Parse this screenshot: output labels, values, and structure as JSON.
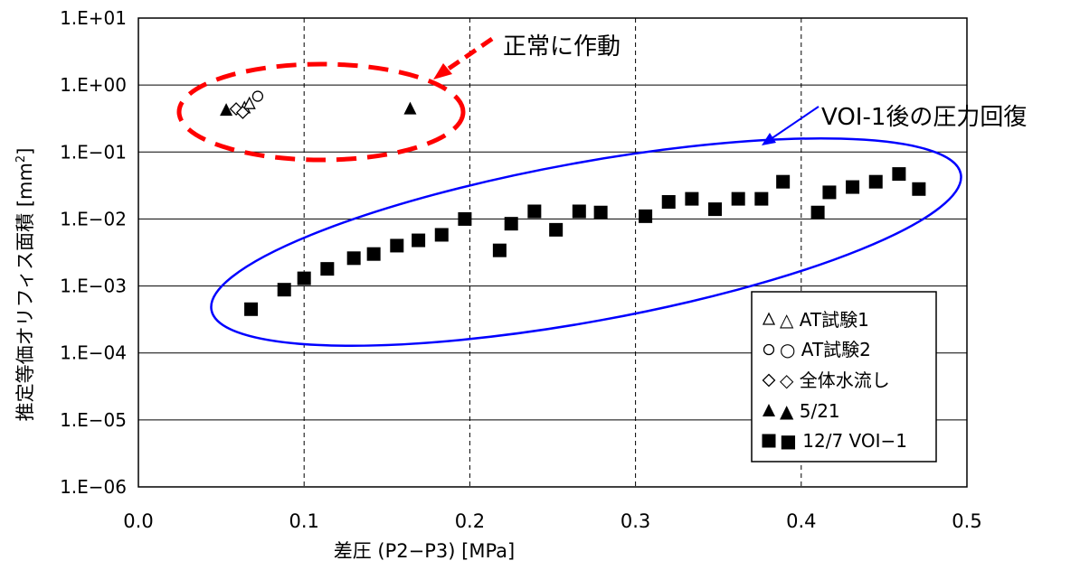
{
  "chart_data": {
    "type": "scatter",
    "xlabel": "差圧 (P2−P3) [MPa]",
    "ylabel": "推定等価オリフィス面積 [mm",
    "ylabel_sup": "2",
    "ylabel_close": "]",
    "x_ticks": [
      "0.0",
      "0.1",
      "0.2",
      "0.3",
      "0.4",
      "0.5"
    ],
    "y_ticks": [
      "1.E−06",
      "1.E−05",
      "1.E−04",
      "1.E−03",
      "1.E−02",
      "1.E−01",
      "1.E+00",
      "1.E+01"
    ],
    "xlim": [
      0,
      0.5
    ],
    "ylim": [
      1e-06,
      10
    ],
    "y_scale": "log",
    "grid": "vertical dashed, horizontal solid",
    "legend_position": "bottom-right",
    "series": [
      {
        "name": "△ AT試験1",
        "marker": "triangle-open",
        "points": [
          [
            0.064,
            0.45
          ],
          [
            0.067,
            0.52
          ]
        ]
      },
      {
        "name": "○ AT試験2",
        "marker": "circle-open",
        "points": [
          [
            0.072,
            0.68
          ]
        ]
      },
      {
        "name": "◇ 全体水流し",
        "marker": "diamond-open",
        "points": [
          [
            0.059,
            0.44
          ],
          [
            0.063,
            0.39
          ]
        ]
      },
      {
        "name": "▲ 5/21",
        "marker": "triangle-filled",
        "points": [
          [
            0.053,
            0.42
          ],
          [
            0.164,
            0.44
          ]
        ]
      },
      {
        "name": "■ 12/7 VOI−1",
        "marker": "square-filled",
        "points": [
          [
            0.068,
            0.00045
          ],
          [
            0.088,
            0.00088
          ],
          [
            0.1,
            0.0013
          ],
          [
            0.114,
            0.0018
          ],
          [
            0.13,
            0.0026
          ],
          [
            0.142,
            0.003
          ],
          [
            0.156,
            0.004
          ],
          [
            0.169,
            0.0048
          ],
          [
            0.183,
            0.0058
          ],
          [
            0.197,
            0.01
          ],
          [
            0.218,
            0.0034
          ],
          [
            0.225,
            0.0085
          ],
          [
            0.239,
            0.013
          ],
          [
            0.252,
            0.0069
          ],
          [
            0.266,
            0.013
          ],
          [
            0.279,
            0.0125
          ],
          [
            0.306,
            0.011
          ],
          [
            0.32,
            0.018
          ],
          [
            0.334,
            0.02
          ],
          [
            0.348,
            0.014
          ],
          [
            0.362,
            0.02
          ],
          [
            0.376,
            0.02
          ],
          [
            0.389,
            0.036
          ],
          [
            0.41,
            0.0125
          ],
          [
            0.417,
            0.025
          ],
          [
            0.431,
            0.03
          ],
          [
            0.445,
            0.036
          ],
          [
            0.459,
            0.047
          ],
          [
            0.471,
            0.028
          ]
        ]
      }
    ],
    "annotations": [
      {
        "text": "正常に作動",
        "color": "#ff0000",
        "style": "dashed-ellipse-with-dashed-arrow"
      },
      {
        "text": "VOI-1後の圧力回復",
        "color": "#0000ff",
        "style": "solid-ellipse-with-arrow"
      }
    ]
  }
}
